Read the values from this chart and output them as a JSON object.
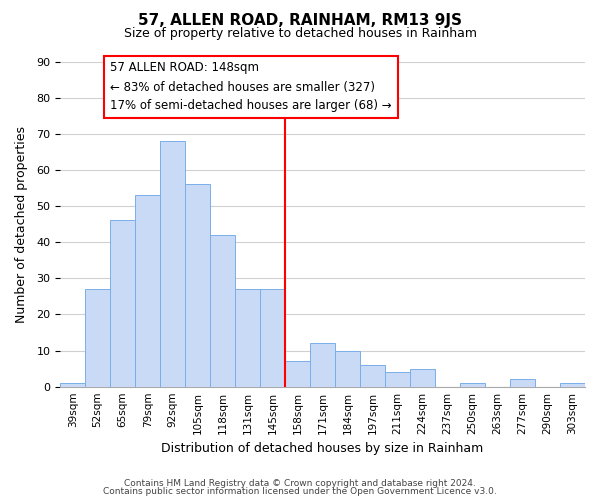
{
  "title": "57, ALLEN ROAD, RAINHAM, RM13 9JS",
  "subtitle": "Size of property relative to detached houses in Rainham",
  "xlabel": "Distribution of detached houses by size in Rainham",
  "ylabel": "Number of detached properties",
  "footer_line1": "Contains HM Land Registry data © Crown copyright and database right 2024.",
  "footer_line2": "Contains public sector information licensed under the Open Government Licence v3.0.",
  "bar_labels": [
    "39sqm",
    "52sqm",
    "65sqm",
    "79sqm",
    "92sqm",
    "105sqm",
    "118sqm",
    "131sqm",
    "145sqm",
    "158sqm",
    "171sqm",
    "184sqm",
    "197sqm",
    "211sqm",
    "224sqm",
    "237sqm",
    "250sqm",
    "263sqm",
    "277sqm",
    "290sqm",
    "303sqm"
  ],
  "bar_values": [
    1,
    27,
    46,
    53,
    68,
    56,
    42,
    27,
    27,
    7,
    12,
    10,
    6,
    4,
    5,
    0,
    1,
    0,
    2,
    0,
    1
  ],
  "bar_color": "#c8daf5",
  "bar_edge_color": "#7aaee8",
  "vline_x_index": 8,
  "vline_color": "red",
  "annotation_title": "57 ALLEN ROAD: 148sqm",
  "annotation_line1": "← 83% of detached houses are smaller (327)",
  "annotation_line2": "17% of semi-detached houses are larger (68) →",
  "annotation_box_edge": "red",
  "ylim": [
    0,
    90
  ],
  "yticks": [
    0,
    10,
    20,
    30,
    40,
    50,
    60,
    70,
    80,
    90
  ],
  "background_color": "#ffffff",
  "grid_color": "#d0d0d0",
  "title_fontsize": 11,
  "subtitle_fontsize": 9
}
